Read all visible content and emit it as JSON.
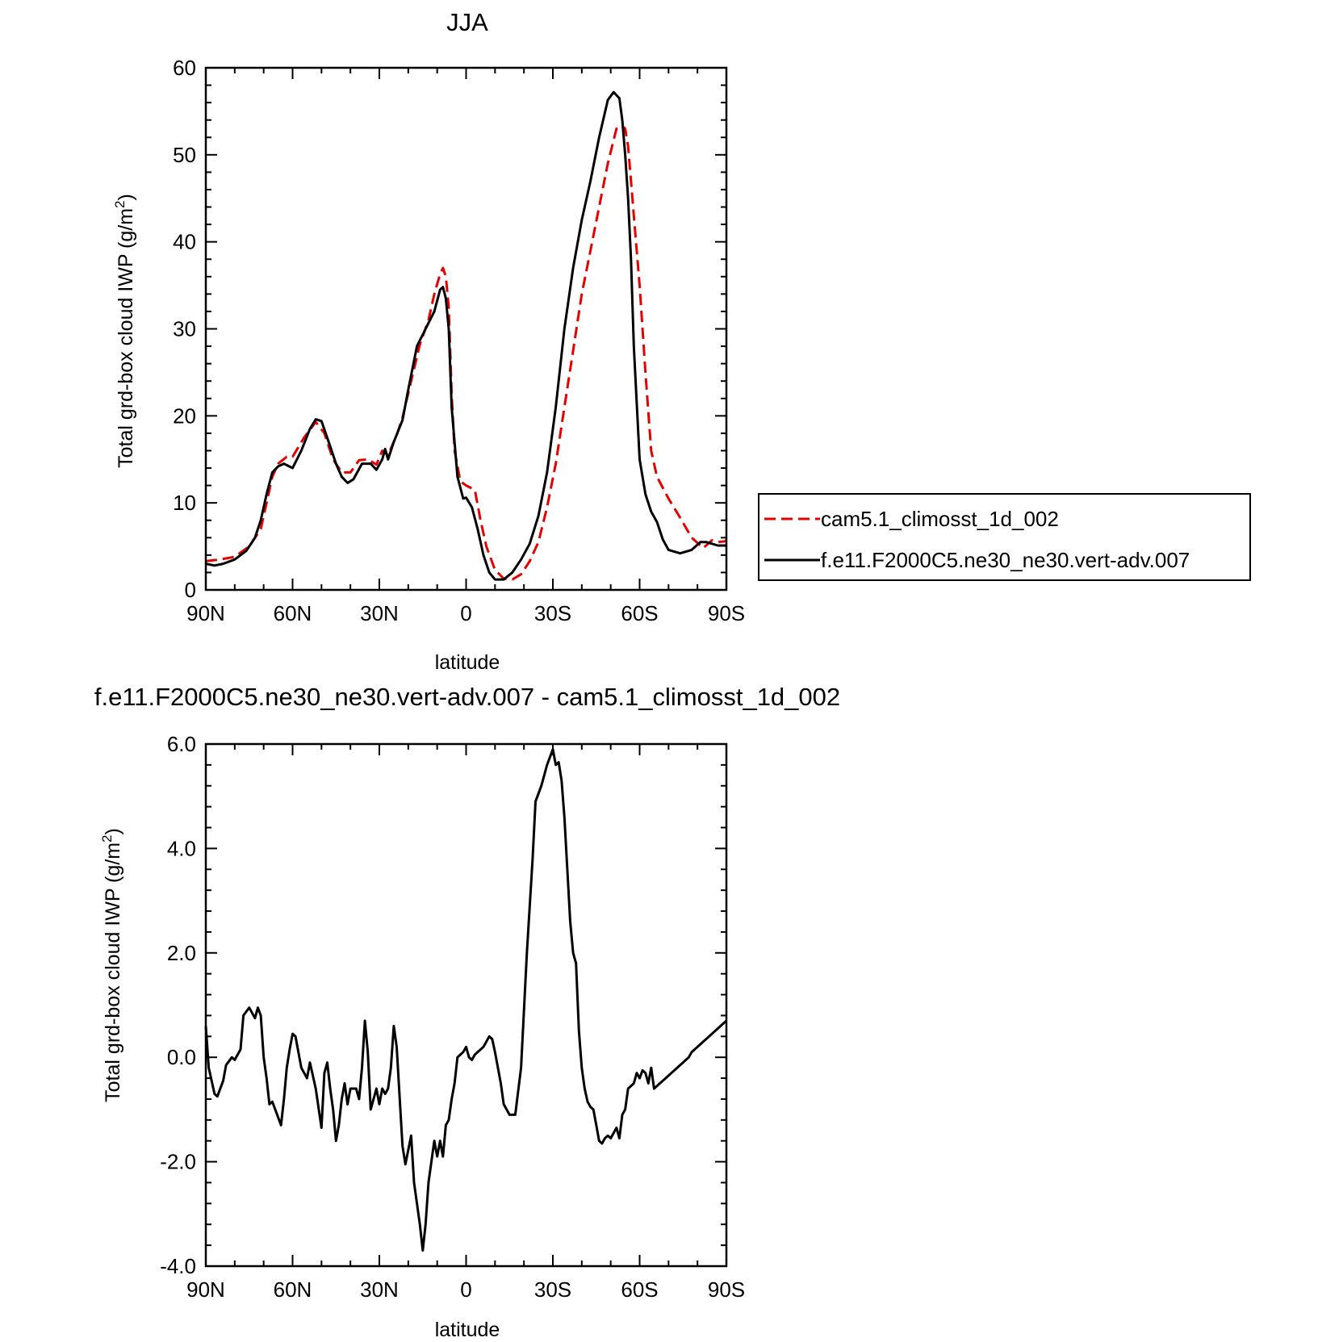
{
  "figure": {
    "top_title": "JJA",
    "bottom_title": "f.e11.F2000C5.ne30_ne30.vert-adv.007 - cam5.1_climosst_1d_002"
  },
  "chart_data": [
    {
      "type": "line",
      "title": "JJA",
      "xlabel": "latitude",
      "ylabel": "Total grd-box cloud IWP (g/m²)",
      "ylabel_main": "Total grd-box cloud IWP (g/m",
      "ylabel_sup": "2",
      "ylabel_end": ")",
      "xlim": [
        90,
        -90
      ],
      "ylim": [
        0,
        60
      ],
      "xtick_values": [
        90,
        60,
        30,
        0,
        -30,
        -60,
        -90
      ],
      "xtick_labels": [
        "90N",
        "60N",
        "30N",
        "0",
        "30S",
        "60S",
        "90S"
      ],
      "ytick_values": [
        0,
        10,
        20,
        30,
        40,
        50,
        60
      ],
      "ytick_labels": [
        "0",
        "10",
        "20",
        "30",
        "40",
        "50",
        "60"
      ],
      "legend_placement": "right",
      "series": [
        {
          "name": "cam5.1_climosst_1d_002",
          "color": "#e60000",
          "style": "dashed",
          "x": [
            90,
            85,
            80,
            75,
            71,
            69,
            67,
            65,
            62,
            60,
            56,
            52,
            49,
            46,
            43,
            40,
            37,
            34,
            31,
            29,
            27,
            24,
            22,
            19,
            16,
            13,
            11,
            9,
            8,
            7,
            6,
            5,
            4,
            2,
            0,
            -3,
            -5,
            -7,
            -10,
            -13,
            -16,
            -19,
            -22,
            -25,
            -28,
            -31,
            -34,
            -37,
            -40,
            -43,
            -46,
            -49,
            -52,
            -54,
            -55,
            -56,
            -57,
            -58,
            -60,
            -62,
            -64,
            -66,
            -70,
            -74,
            -78,
            -82,
            -85,
            -87,
            -90
          ],
          "values": [
            3.3,
            3.5,
            3.8,
            5.0,
            7.0,
            10.0,
            13.0,
            14.5,
            15.3,
            15.3,
            17.5,
            19.3,
            18.0,
            15.0,
            13.5,
            13.5,
            14.9,
            15.0,
            14.4,
            16.0,
            15.5,
            17.8,
            19.8,
            24.0,
            28.2,
            31.0,
            34.0,
            36.3,
            37.0,
            36.0,
            32.5,
            22.5,
            16.0,
            12.5,
            12.0,
            11.5,
            8.0,
            5.0,
            2.3,
            1.3,
            1.2,
            1.8,
            3.3,
            5.5,
            9.5,
            14.5,
            21.0,
            27.5,
            34.0,
            39.0,
            44.0,
            49.0,
            53.0,
            53.3,
            53.0,
            51.0,
            47.0,
            43.0,
            35.0,
            25.0,
            16.0,
            13.0,
            10.5,
            8.3,
            6.0,
            4.8,
            5.7,
            5.5,
            5.6
          ]
        },
        {
          "name": "f.e11.F2000C5.ne30_ne30.vert-adv.007",
          "color": "#000000",
          "style": "solid",
          "x": [
            90,
            87,
            84,
            80,
            76,
            73,
            71,
            69,
            67,
            65,
            63,
            60,
            57,
            54,
            52,
            50,
            47,
            45,
            43,
            41,
            39,
            36,
            33,
            31,
            29,
            28,
            27,
            25,
            22,
            20,
            17,
            14,
            11,
            9,
            8,
            7,
            6,
            5,
            3,
            1,
            0,
            -2,
            -4,
            -6,
            -8,
            -10,
            -13,
            -16,
            -19,
            -22,
            -25,
            -28,
            -31,
            -34,
            -37,
            -40,
            -43,
            -46,
            -49,
            -51,
            -53,
            -54,
            -55,
            -56,
            -57,
            -58,
            -60,
            -62,
            -64,
            -66,
            -68,
            -70,
            -74,
            -78,
            -81,
            -83,
            -85,
            -87,
            -90
          ],
          "values": [
            3.0,
            2.8,
            3.0,
            3.5,
            4.5,
            6.0,
            8.0,
            11.0,
            13.5,
            14.2,
            14.5,
            14.0,
            16.0,
            18.5,
            19.6,
            19.4,
            16.5,
            14.5,
            13.0,
            12.3,
            12.7,
            14.5,
            14.5,
            13.8,
            15.0,
            16.2,
            15.0,
            17.0,
            19.5,
            23.0,
            28.0,
            30.0,
            32.0,
            34.5,
            34.8,
            33.5,
            30.0,
            21.0,
            13.0,
            10.5,
            10.6,
            9.5,
            7.0,
            4.0,
            2.0,
            1.2,
            1.2,
            2.0,
            3.5,
            5.3,
            8.5,
            13.5,
            21.0,
            30.0,
            37.0,
            42.5,
            47.0,
            52.0,
            56.3,
            57.2,
            56.5,
            54.0,
            50.0,
            45.0,
            38.0,
            28.0,
            15.0,
            11.0,
            9.0,
            7.8,
            5.8,
            4.6,
            4.2,
            4.6,
            5.5,
            5.5,
            5.3,
            5.1,
            5.1
          ]
        }
      ]
    },
    {
      "type": "line",
      "title": "f.e11.F2000C5.ne30_ne30.vert-adv.007 - cam5.1_climosst_1d_002",
      "xlabel": "latitude",
      "ylabel": "Total grd-box cloud IWP (g/m²)",
      "ylabel_main": "Total grd-box cloud IWP (g/m",
      "ylabel_sup": "2",
      "ylabel_end": ")",
      "xlim": [
        90,
        -90
      ],
      "ylim": [
        -4.0,
        6.0
      ],
      "xtick_values": [
        90,
        60,
        30,
        0,
        -30,
        -60,
        -90
      ],
      "xtick_labels": [
        "90N",
        "60N",
        "30N",
        "0",
        "30S",
        "60S",
        "90S"
      ],
      "ytick_values": [
        -4,
        -2,
        0,
        2,
        4,
        6
      ],
      "ytick_labels": [
        "-4.0",
        "-2.0",
        "0.0",
        "2.0",
        "4.0",
        "6.0"
      ],
      "series": [
        {
          "name": "",
          "color": "#000000",
          "style": "solid",
          "x": [
            90,
            89,
            87,
            86,
            84,
            83,
            81,
            80,
            78,
            77,
            75,
            73,
            72,
            71,
            70,
            69,
            68,
            67,
            66,
            64,
            63,
            62,
            61,
            60,
            59,
            57,
            55,
            54,
            53,
            52,
            50,
            49,
            48,
            47,
            46,
            45,
            44,
            43,
            42,
            41,
            40,
            38,
            37,
            36,
            35,
            34,
            33,
            31,
            30,
            29,
            28,
            27,
            26,
            25,
            24,
            22,
            21,
            19,
            18,
            16,
            15,
            14,
            13,
            11,
            10,
            9,
            8,
            7,
            6,
            5,
            4,
            3,
            2,
            1,
            0,
            -1,
            -2,
            -3,
            -4,
            -5,
            -6,
            -7,
            -8,
            -9,
            -10,
            -12,
            -13,
            -15,
            -17,
            -19,
            -21,
            -23,
            -24,
            -26,
            -28,
            -30,
            -31,
            -32,
            -33,
            -34,
            -35,
            -36,
            -37,
            -38,
            -39,
            -40,
            -41,
            -42,
            -43,
            -44,
            -45,
            -46,
            -47,
            -48,
            -49,
            -50,
            -51,
            -52,
            -53,
            -54,
            -55,
            -56,
            -57,
            -58,
            -59,
            -60,
            -61,
            -62,
            -63,
            -64,
            -65,
            -66,
            -67,
            -68,
            -69,
            -70,
            -71,
            -72,
            -73,
            -74,
            -75,
            -76,
            -77,
            -78,
            -79,
            -80,
            -81,
            -82,
            -83,
            -84,
            -85,
            -86,
            -87,
            -88,
            -89,
            -90
          ],
          "values": [
            0.6,
            -0.2,
            -0.7,
            -0.75,
            -0.45,
            -0.15,
            0.0,
            -0.05,
            0.15,
            0.8,
            0.95,
            0.75,
            0.95,
            0.8,
            0.0,
            -0.4,
            -0.9,
            -0.85,
            -1.0,
            -1.3,
            -0.8,
            -0.2,
            0.15,
            0.45,
            0.4,
            -0.2,
            -0.4,
            -0.1,
            -0.35,
            -0.6,
            -1.35,
            -0.3,
            -0.1,
            -0.6,
            -1.0,
            -1.6,
            -1.3,
            -0.8,
            -0.5,
            -0.9,
            -0.6,
            -0.6,
            -0.8,
            -0.2,
            0.7,
            0.1,
            -1.0,
            -0.6,
            -0.9,
            -0.6,
            -0.7,
            -0.6,
            -0.2,
            0.6,
            0.2,
            -1.7,
            -2.05,
            -1.5,
            -2.4,
            -3.2,
            -3.7,
            -3.2,
            -2.4,
            -1.6,
            -1.9,
            -1.6,
            -1.9,
            -1.3,
            -1.2,
            -0.8,
            -0.5,
            0.0,
            0.05,
            0.1,
            0.2,
            0.0,
            -0.05,
            0.05,
            0.1,
            0.15,
            0.2,
            0.3,
            0.4,
            0.35,
            0.1,
            -0.5,
            -0.9,
            -1.1,
            -1.1,
            -0.2,
            2.0,
            3.8,
            4.9,
            5.2,
            5.6,
            5.9,
            5.6,
            5.65,
            5.3,
            4.6,
            3.6,
            2.6,
            2.0,
            1.8,
            0.5,
            -0.2,
            -0.6,
            -0.85,
            -0.95,
            -1.0,
            -1.3,
            -1.6,
            -1.65,
            -1.55,
            -1.5,
            -1.55,
            -1.45,
            -1.35,
            -1.55,
            -1.1,
            -1.0,
            -0.6,
            -0.55,
            -0.5,
            -0.3,
            -0.4,
            -0.25,
            -0.3,
            -0.5,
            -0.2,
            -0.6,
            -0.55,
            -0.5,
            -0.45,
            -0.4,
            -0.35,
            -0.3,
            -0.25,
            -0.2,
            -0.15,
            -0.1,
            -0.05,
            0.0,
            0.1,
            0.15,
            0.2,
            0.25,
            0.3,
            0.35,
            0.4,
            0.45,
            0.5,
            0.55,
            0.6,
            0.65,
            0.7
          ]
        }
      ]
    }
  ]
}
